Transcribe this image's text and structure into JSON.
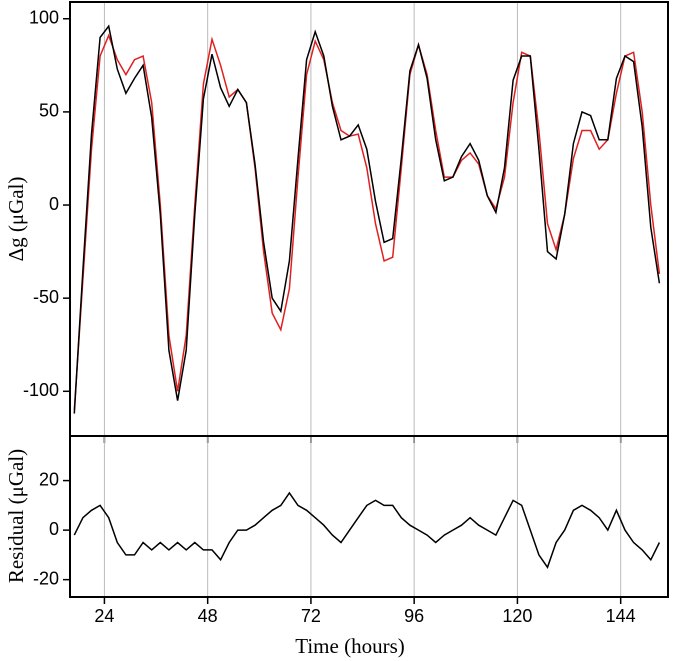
{
  "chart_data": [
    {
      "type": "line",
      "y_label": "Δg (μGal)",
      "x": [
        17,
        19,
        21,
        23,
        25,
        27,
        29,
        31,
        33,
        35,
        37,
        39,
        41,
        43,
        45,
        47,
        49,
        51,
        53,
        55,
        57,
        59,
        61,
        63,
        65,
        67,
        69,
        71,
        73,
        75,
        77,
        79,
        81,
        83,
        85,
        87,
        89,
        91,
        93,
        95,
        97,
        99,
        101,
        103,
        105,
        107,
        109,
        111,
        113,
        115,
        117,
        119,
        121,
        123,
        125,
        127,
        129,
        131,
        133,
        135,
        137,
        139,
        141,
        143,
        145,
        147,
        149,
        151,
        153
      ],
      "series": [
        {
          "color": "#e02020",
          "values": [
            -110,
            -40,
            30,
            80,
            91,
            78,
            70,
            78,
            80,
            55,
            0,
            -70,
            -100,
            -70,
            0,
            65,
            89,
            75,
            58,
            62,
            55,
            20,
            -25,
            -58,
            -67,
            -45,
            15,
            70,
            88,
            78,
            55,
            40,
            37,
            38,
            20,
            -10,
            -30,
            -28,
            20,
            70,
            86,
            70,
            40,
            15,
            15,
            24,
            28,
            22,
            5,
            -2,
            15,
            55,
            82,
            80,
            40,
            -10,
            -24,
            -5,
            25,
            40,
            40,
            30,
            35,
            60,
            80,
            82,
            50,
            0,
            -37
          ]
        },
        {
          "color": "#000000",
          "values": [
            -112,
            -35,
            38,
            90,
            96,
            73,
            60,
            68,
            75,
            47,
            -5,
            -78,
            -105,
            -78,
            -5,
            57,
            81,
            63,
            53,
            62,
            55,
            22,
            -20,
            -50,
            -57,
            -30,
            25,
            78,
            93,
            80,
            53,
            35,
            37,
            43,
            30,
            2,
            -20,
            -18,
            25,
            72,
            86,
            68,
            35,
            13,
            15,
            26,
            33,
            24,
            5,
            -4,
            20,
            67,
            80,
            80,
            30,
            -25,
            -29,
            -5,
            33,
            50,
            48,
            35,
            35,
            68,
            80,
            77,
            42,
            -12,
            -42
          ]
        }
      ],
      "xlim": [
        16,
        155
      ],
      "xticks": [
        24,
        48,
        72,
        96,
        120,
        144
      ],
      "ylim": [
        -124,
        109
      ],
      "yticks": [
        -100,
        -50,
        0,
        50,
        100
      ],
      "grid": true
    },
    {
      "type": "line",
      "x_label": "Time (hours)",
      "y_label": "Residual (μGal)",
      "x": [
        17,
        19,
        21,
        23,
        25,
        27,
        29,
        31,
        33,
        35,
        37,
        39,
        41,
        43,
        45,
        47,
        49,
        51,
        53,
        55,
        57,
        59,
        61,
        63,
        65,
        67,
        69,
        71,
        73,
        75,
        77,
        79,
        81,
        83,
        85,
        87,
        89,
        91,
        93,
        95,
        97,
        99,
        101,
        103,
        105,
        107,
        109,
        111,
        113,
        115,
        117,
        119,
        121,
        123,
        125,
        127,
        129,
        131,
        133,
        135,
        137,
        139,
        141,
        143,
        145,
        147,
        149,
        151,
        153
      ],
      "series": [
        {
          "color": "#000000",
          "values": [
            -2,
            5,
            8,
            10,
            5,
            -5,
            -10,
            -10,
            -5,
            -8,
            -5,
            -8,
            -5,
            -8,
            -5,
            -8,
            -8,
            -12,
            -5,
            0,
            0,
            2,
            5,
            8,
            10,
            15,
            10,
            8,
            5,
            2,
            -2,
            -5,
            0,
            5,
            10,
            12,
            10,
            10,
            5,
            2,
            0,
            -2,
            -5,
            -2,
            0,
            2,
            5,
            2,
            0,
            -2,
            5,
            12,
            10,
            0,
            -10,
            -15,
            -5,
            0,
            8,
            10,
            8,
            5,
            0,
            8,
            0,
            -5,
            -8,
            -12,
            -5
          ]
        }
      ],
      "xlim": [
        16,
        155
      ],
      "xticks": [
        24,
        48,
        72,
        96,
        120,
        144
      ],
      "ylim": [
        -27,
        38
      ],
      "yticks": [
        -20,
        0,
        20
      ],
      "grid": true
    }
  ]
}
